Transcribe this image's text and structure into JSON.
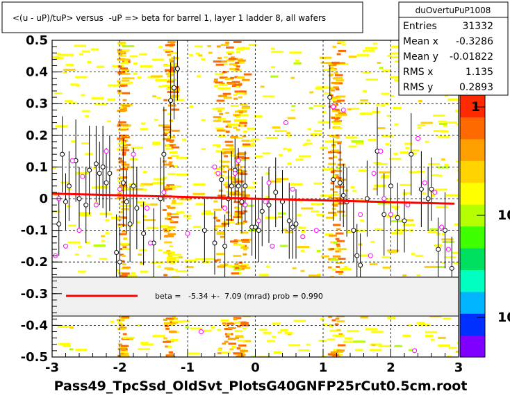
{
  "colors": {
    "frame": "#000000",
    "fit_line": "#ff0000",
    "legend_box_fill": "#f0f0f0",
    "marker_black": "#000000",
    "marker_magenta": "#ff00ff",
    "palette": [
      "#7f00ff",
      "#0030ff",
      "#00b4ff",
      "#00ffc0",
      "#00e060",
      "#40ff00",
      "#b4ff00",
      "#ffff00",
      "#ffd200",
      "#ffa000",
      "#ff6a00",
      "#ff2a00"
    ]
  },
  "chart_data": {
    "type": "scatter",
    "title": "<(u - uP)/tuP> versus  -uP => beta for barrel 1, layer 1 ladder 8, all wafers",
    "xlabel": "Pass49_TpcSsd_OldSvt_PlotsG40GNFP25rCut0.5cm.root",
    "ylabel": "",
    "xlim": [
      -3,
      3
    ],
    "ylim": [
      -0.5,
      0.5
    ],
    "x_ticks": [
      "-3",
      "-2",
      "-1",
      "0",
      "1",
      "2",
      "3"
    ],
    "y_ticks": [
      "-0.5",
      "-0.4",
      "-0.3",
      "-0.2",
      "-0.1",
      "0",
      "0.1",
      "0.2",
      "0.3",
      "0.4",
      "0.5"
    ],
    "grid": true,
    "stats_box": {
      "title": "duOvertuPuP1008",
      "rows": [
        {
          "label": "Entries",
          "value": "31332"
        },
        {
          "label": "Mean x",
          "value": "-0.3286"
        },
        {
          "label": "Mean y",
          "value": "-0.01822"
        },
        {
          "label": "RMS x",
          "value": "1.135"
        },
        {
          "label": "RMS y",
          "value": "0.2893"
        }
      ]
    },
    "color_scale_labels": [
      "1",
      "10",
      "10"
    ],
    "fit": {
      "legend_text": "beta =   -5.34 +-  7.09 (mrad) prob = 0.990",
      "x": [
        -3,
        3
      ],
      "y": [
        0.016,
        -0.016
      ]
    },
    "black_points": [
      {
        "x": -2.9,
        "y": -0.08,
        "e": 0.1
      },
      {
        "x": -2.85,
        "y": 0.14,
        "e": 0.12
      },
      {
        "x": -2.8,
        "y": -0.01,
        "e": 0.09
      },
      {
        "x": -2.75,
        "y": 0.04,
        "e": 0.11
      },
      {
        "x": -2.65,
        "y": 0.12,
        "e": 0.13
      },
      {
        "x": -2.6,
        "y": 0.0,
        "e": 0.1
      },
      {
        "x": -2.5,
        "y": -0.02,
        "e": 0.12
      },
      {
        "x": -2.45,
        "y": 0.09,
        "e": 0.14
      },
      {
        "x": -2.35,
        "y": 0.11,
        "e": 0.12
      },
      {
        "x": -2.3,
        "y": 0.08,
        "e": 0.1
      },
      {
        "x": -2.25,
        "y": 0.1,
        "e": 0.13
      },
      {
        "x": -2.2,
        "y": 0.05,
        "e": 0.11
      },
      {
        "x": -2.15,
        "y": 0.08,
        "e": 0.12
      },
      {
        "x": -2.05,
        "y": -0.17,
        "e": 0.12
      },
      {
        "x": -2.0,
        "y": -0.2,
        "e": 0.11
      },
      {
        "x": -1.95,
        "y": 0.05,
        "e": 0.14
      },
      {
        "x": -1.9,
        "y": -0.01,
        "e": 0.1
      },
      {
        "x": -1.85,
        "y": -0.08,
        "e": 0.12
      },
      {
        "x": -1.8,
        "y": 0.04,
        "e": 0.12
      },
      {
        "x": -1.75,
        "y": -0.03,
        "e": 0.13
      },
      {
        "x": -1.65,
        "y": -0.11,
        "e": 0.1
      },
      {
        "x": -1.5,
        "y": -0.14,
        "e": 0.11
      },
      {
        "x": -1.4,
        "y": 0.0,
        "e": 0.13
      },
      {
        "x": -1.35,
        "y": 0.14,
        "e": 0.15
      },
      {
        "x": -1.25,
        "y": 0.31,
        "e": 0.12
      },
      {
        "x": -1.2,
        "y": 0.35,
        "e": 0.1
      },
      {
        "x": -1.15,
        "y": 0.41,
        "e": 0.1
      },
      {
        "x": -0.75,
        "y": -0.1,
        "e": 0.1
      },
      {
        "x": -0.6,
        "y": -0.14,
        "e": 0.1
      },
      {
        "x": -0.5,
        "y": 0.06,
        "e": 0.09
      },
      {
        "x": -0.45,
        "y": -0.15,
        "e": 0.1
      },
      {
        "x": -0.4,
        "y": 0.0,
        "e": 0.09
      },
      {
        "x": -0.35,
        "y": 0.04,
        "e": 0.11
      },
      {
        "x": -0.3,
        "y": 0.09,
        "e": 0.1
      },
      {
        "x": -0.25,
        "y": 0.04,
        "e": 0.12
      },
      {
        "x": -0.2,
        "y": -0.01,
        "e": 0.1
      },
      {
        "x": -0.15,
        "y": 0.04,
        "e": 0.11
      },
      {
        "x": -0.05,
        "y": -0.09,
        "e": 0.09
      },
      {
        "x": 0.0,
        "y": -0.09,
        "e": 0.1
      },
      {
        "x": 0.05,
        "y": -0.1,
        "e": 0.1
      },
      {
        "x": 0.1,
        "y": -0.04,
        "e": 0.11
      },
      {
        "x": 0.2,
        "y": -0.02,
        "e": 0.12
      },
      {
        "x": 0.3,
        "y": 0.02,
        "e": 0.11
      },
      {
        "x": 0.4,
        "y": -0.01,
        "e": 0.1
      },
      {
        "x": 0.5,
        "y": -0.07,
        "e": 0.12
      },
      {
        "x": 0.55,
        "y": -0.09,
        "e": 0.1
      },
      {
        "x": 0.6,
        "y": -0.08,
        "e": 0.11
      },
      {
        "x": 1.1,
        "y": 0.32,
        "e": 0.1
      },
      {
        "x": 1.15,
        "y": 0.06,
        "e": 0.13
      },
      {
        "x": 1.25,
        "y": 0.05,
        "e": 0.12
      },
      {
        "x": 1.3,
        "y": 0.01,
        "e": 0.1
      },
      {
        "x": 1.35,
        "y": -0.01,
        "e": 0.11
      },
      {
        "x": 1.45,
        "y": -0.1,
        "e": 0.1
      },
      {
        "x": 1.5,
        "y": -0.18,
        "e": 0.1
      },
      {
        "x": 1.55,
        "y": -0.21,
        "e": 0.1
      },
      {
        "x": 1.65,
        "y": 0.0,
        "e": 0.12
      },
      {
        "x": 1.8,
        "y": 0.15,
        "e": 0.14
      },
      {
        "x": 1.9,
        "y": -0.05,
        "e": 0.13
      },
      {
        "x": 2.0,
        "y": 0.04,
        "e": 0.12
      },
      {
        "x": 2.1,
        "y": -0.06,
        "e": 0.11
      },
      {
        "x": 2.2,
        "y": -0.07,
        "e": 0.1
      },
      {
        "x": 2.3,
        "y": 0.14,
        "e": 0.13
      },
      {
        "x": 2.45,
        "y": 0.03,
        "e": 0.12
      },
      {
        "x": 2.55,
        "y": 0.0,
        "e": 0.1
      },
      {
        "x": 2.6,
        "y": 0.03,
        "e": 0.1
      },
      {
        "x": 2.7,
        "y": -0.16,
        "e": 0.1
      },
      {
        "x": 2.8,
        "y": -0.1,
        "e": 0.12
      },
      {
        "x": 2.9,
        "y": -0.22,
        "e": 0.1
      }
    ],
    "magenta_points": [
      {
        "x": -2.95,
        "y": -0.18
      },
      {
        "x": -2.9,
        "y": 0.0
      },
      {
        "x": -2.8,
        "y": -0.15
      },
      {
        "x": -2.7,
        "y": 0.12
      },
      {
        "x": -2.6,
        "y": -0.1
      },
      {
        "x": -2.55,
        "y": 0.07
      },
      {
        "x": -2.35,
        "y": -0.02
      },
      {
        "x": -2.2,
        "y": 0.15
      },
      {
        "x": -2.0,
        "y": 0.03
      },
      {
        "x": -1.8,
        "y": 0.14
      },
      {
        "x": -1.6,
        "y": -0.03
      },
      {
        "x": -1.35,
        "y": 0.02
      },
      {
        "x": -1.0,
        "y": -0.11
      },
      {
        "x": -0.8,
        "y": -0.42
      },
      {
        "x": -0.6,
        "y": 0.1
      },
      {
        "x": -0.55,
        "y": 0.08
      },
      {
        "x": -0.45,
        "y": -0.03
      },
      {
        "x": -0.3,
        "y": 0.08
      },
      {
        "x": -0.25,
        "y": 0.12
      },
      {
        "x": -0.15,
        "y": -0.02
      },
      {
        "x": 0.05,
        "y": -0.07
      },
      {
        "x": 0.15,
        "y": -0.01
      },
      {
        "x": 0.2,
        "y": 0.05
      },
      {
        "x": 0.25,
        "y": -0.15
      },
      {
        "x": 0.45,
        "y": 0.24
      },
      {
        "x": 0.55,
        "y": 0.03
      },
      {
        "x": 0.7,
        "y": -0.12
      },
      {
        "x": 1.15,
        "y": 0.29
      },
      {
        "x": 1.3,
        "y": 0.28
      },
      {
        "x": 1.55,
        "y": -0.05
      },
      {
        "x": 1.7,
        "y": -0.18
      },
      {
        "x": 1.75,
        "y": 0.08
      },
      {
        "x": 1.85,
        "y": 0.15
      },
      {
        "x": 2.0,
        "y": -0.05
      },
      {
        "x": 2.25,
        "y": -0.02
      },
      {
        "x": 2.4,
        "y": 0.19
      },
      {
        "x": 2.5,
        "y": 0.05
      },
      {
        "x": 2.65,
        "y": 0.02
      },
      {
        "x": 2.75,
        "y": -0.09
      },
      {
        "x": 2.85,
        "y": -0.16
      },
      {
        "x": 2.35,
        "y": -0.48
      },
      {
        "x": -1.55,
        "y": -0.14
      },
      {
        "x": 1.9,
        "y": 0.0
      },
      {
        "x": 0.9,
        "y": -0.1
      }
    ]
  }
}
